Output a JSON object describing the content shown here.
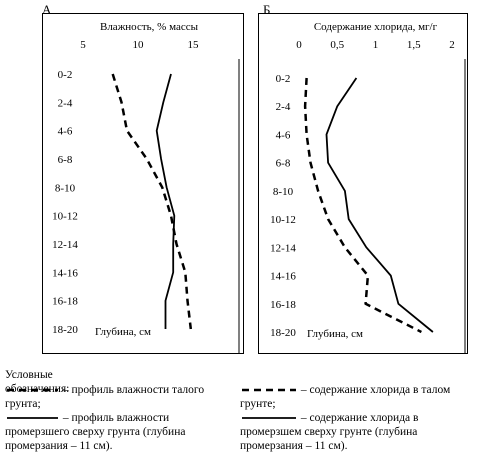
{
  "panels": [
    {
      "letter": "А"
    },
    {
      "letter": "Б"
    }
  ],
  "chart_data": [
    {
      "type": "line",
      "title": "",
      "xlabel": "Влажность, % массы",
      "ylabel": "Глубина, см",
      "x_axis_position": "top",
      "xlim": [
        5,
        17
      ],
      "xticks": [
        5,
        10,
        15
      ],
      "categories": [
        "0-2",
        "2-4",
        "4-6",
        "6-8",
        "8-10",
        "10-12",
        "12-14",
        "14-16",
        "16-18",
        "18-20"
      ],
      "series": [
        {
          "style": "dashed",
          "values": [
            7.7,
            8.5,
            9.0,
            10.8,
            12.2,
            13.0,
            13.5,
            14.3,
            14.5,
            14.8
          ]
        },
        {
          "style": "solid",
          "values": [
            13.0,
            12.3,
            11.7,
            12.1,
            12.6,
            13.3,
            13.2,
            13.2,
            12.5,
            12.5
          ]
        }
      ],
      "grid": false,
      "legend": "below"
    },
    {
      "type": "line",
      "title": "",
      "xlabel": "Содержание хлорида, мг/г",
      "ylabel": "Глубина, см",
      "x_axis_position": "top",
      "xlim": [
        0,
        2
      ],
      "xticks": [
        0,
        0.5,
        1,
        1.5,
        2
      ],
      "xtick_labels": [
        "0",
        "0,5",
        "1",
        "1,5",
        "2"
      ],
      "categories": [
        "0-2",
        "2-4",
        "4-6",
        "6-8",
        "8-10",
        "10-12",
        "12-14",
        "14-16",
        "16-18",
        "18-20"
      ],
      "series": [
        {
          "style": "dashed",
          "values": [
            0.1,
            0.08,
            0.1,
            0.15,
            0.25,
            0.38,
            0.6,
            0.9,
            0.87,
            1.6
          ]
        },
        {
          "style": "solid",
          "values": [
            0.75,
            0.5,
            0.36,
            0.38,
            0.6,
            0.65,
            0.88,
            1.2,
            1.3,
            1.75
          ]
        }
      ],
      "grid": false,
      "legend": "below"
    }
  ],
  "legend": {
    "title": "Условные обозначения:",
    "items": [
      {
        "style": "dashed",
        "text_first": "– профиль влажности талого",
        "text_rest": "грунта;"
      },
      {
        "style": "solid",
        "text_first": "– профиль влажности",
        "text_rest": "промерзшего сверху грунта (глубина промерзания – 11 см)."
      },
      {
        "style": "dashed",
        "text_first": "– содержание хлорида в талом",
        "text_rest": "грунте;"
      },
      {
        "style": "solid",
        "text_first": "– содержание хлорида в",
        "text_rest": "промерзшем сверху грунте (глубина промерзания – 11 см)."
      }
    ]
  }
}
